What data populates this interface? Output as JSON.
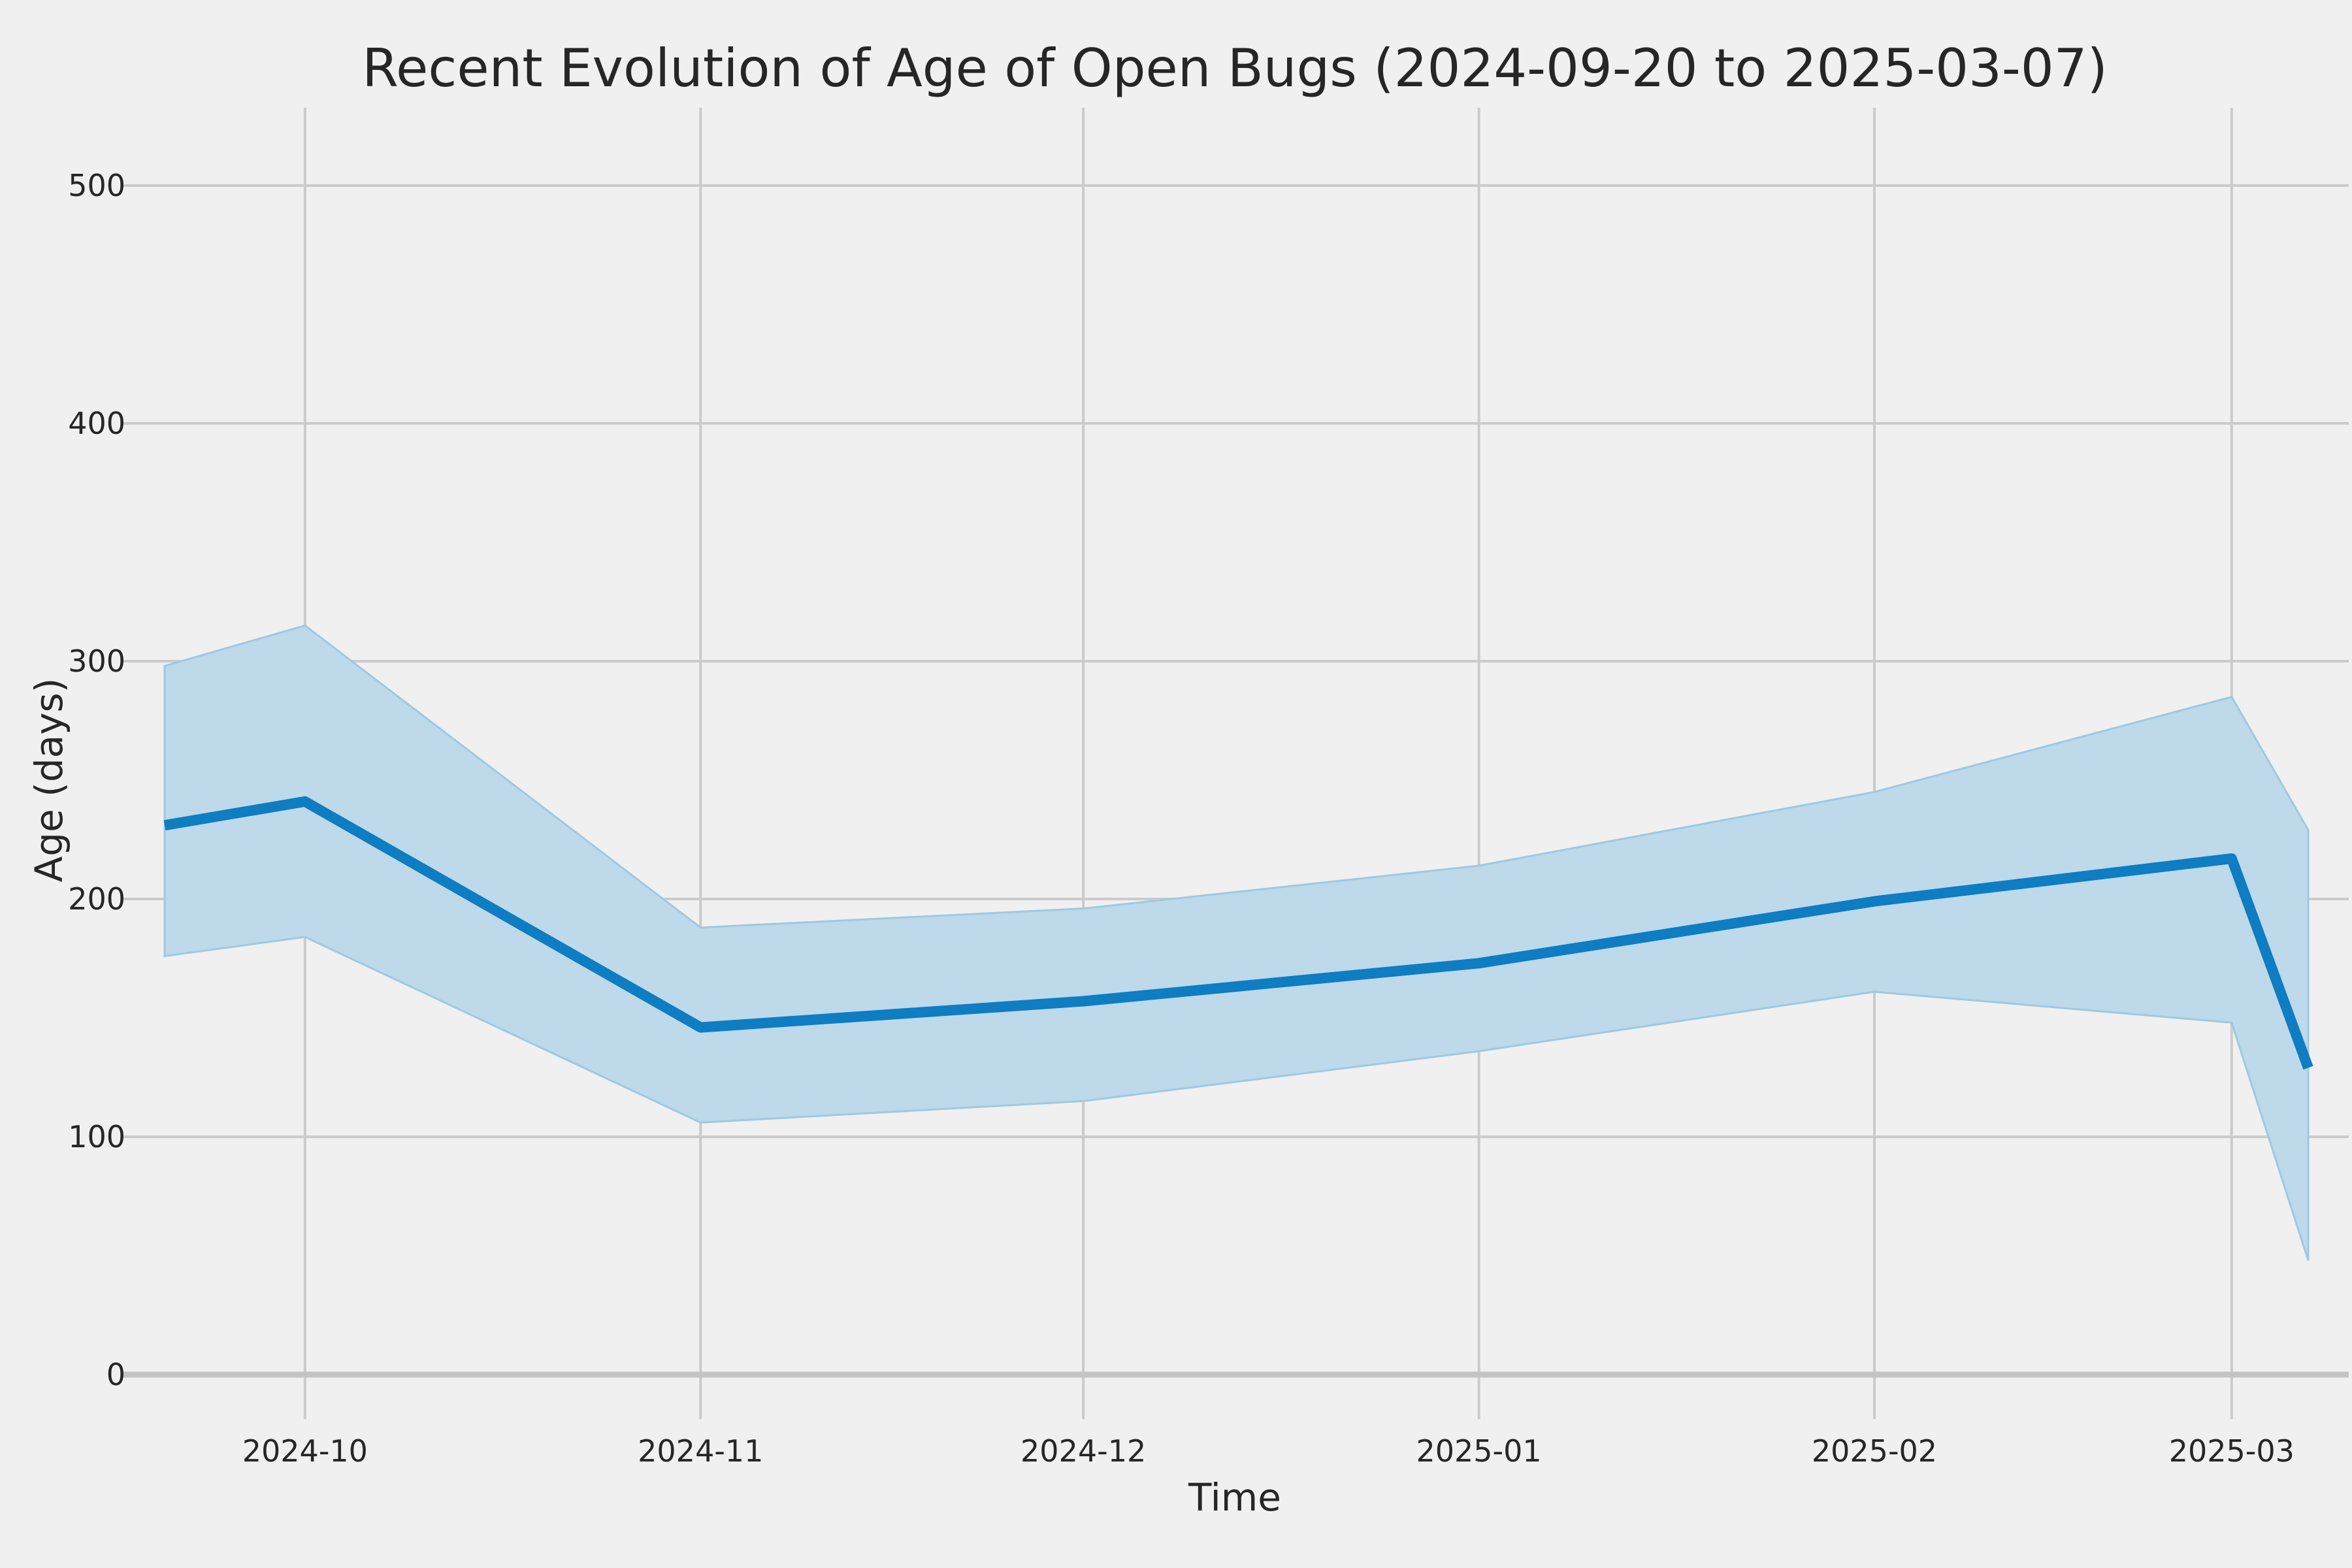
{
  "chart_data": {
    "type": "line",
    "title": "Recent Evolution of Age of Open Bugs (2024-09-20 to 2025-03-07)",
    "xlabel": "Time",
    "ylabel": "Age (days)",
    "date_start": "2024-09-20",
    "date_end": "2025-03-07",
    "x_tick_labels": [
      "2024-10",
      "2024-11",
      "2024-12",
      "2025-01",
      "2025-02",
      "2025-03"
    ],
    "x_tick_days": [
      11,
      42,
      72,
      103,
      134,
      162
    ],
    "y_ticks": [
      0,
      100,
      200,
      300,
      400,
      500
    ],
    "x_range_days": [
      0,
      168
    ],
    "ylim": [
      -20,
      532
    ],
    "grid": true,
    "legend_position": "none",
    "points": {
      "dates": [
        "2024-09-20",
        "2024-10-01",
        "2024-11-01",
        "2024-12-01",
        "2025-01-01",
        "2025-02-01",
        "2025-03-01",
        "2025-03-07"
      ],
      "x_days": [
        0,
        11,
        42,
        72,
        103,
        134,
        162,
        168
      ]
    },
    "series": [
      {
        "name": "mean-age-line",
        "values": [
          231,
          241,
          146,
          157,
          173,
          199,
          217,
          129
        ]
      },
      {
        "name": "band-lower",
        "values": [
          176,
          184,
          106,
          115,
          136,
          161,
          148,
          48
        ]
      },
      {
        "name": "band-upper",
        "values": [
          298,
          315,
          188,
          196,
          214,
          245,
          285,
          229
        ]
      }
    ],
    "colors": {
      "line": "#0e7dc2",
      "band_fill": "#bdd9ea",
      "band_edge": "#9ec9e2",
      "background": "#f0f0f0",
      "gridline": "#cbcbcb",
      "zero_gridline": "#c3c3c3",
      "text": "#262626"
    }
  }
}
